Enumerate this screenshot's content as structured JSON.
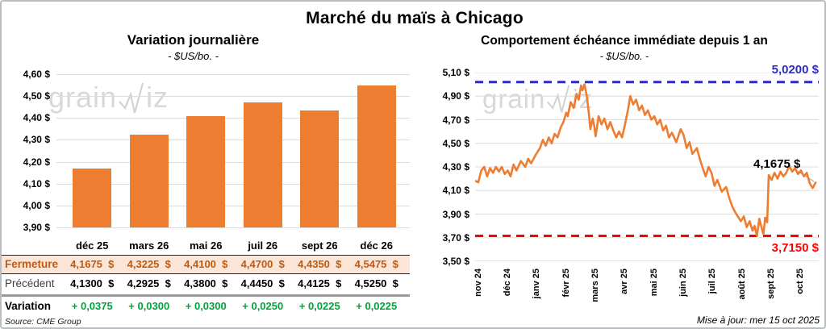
{
  "header": {
    "title": "Marché du maïs à Chicago"
  },
  "watermark": {
    "part1": "grain",
    "part2": "iz"
  },
  "chart_data": [
    {
      "type": "bar",
      "title": "Variation journalière",
      "subtitle": "- $US/bo. -",
      "categories": [
        "déc 25",
        "mars 26",
        "mai 26",
        "juil 26",
        "sept 26",
        "déc 26"
      ],
      "values": [
        4.1675,
        4.3225,
        4.41,
        4.47,
        4.435,
        4.5475
      ],
      "ylim": [
        3.9,
        4.6
      ],
      "ytick_labels": [
        "4,60 $",
        "4,50 $",
        "4,40 $",
        "4,30 $",
        "4,20 $",
        "4,10 $",
        "4,00 $",
        "3,90 $"
      ],
      "bar_color": "#ED7D31",
      "grid": true
    },
    {
      "type": "line",
      "title": "Comportement échéance immédiate depuis 1 an",
      "subtitle": "- $US/bo. -",
      "x_labels": [
        "nov 24",
        "déc 24",
        "janv 25",
        "févr 25",
        "mars 25",
        "avr 25",
        "mai 25",
        "juin 25",
        "juil 25",
        "août 25",
        "sept 25",
        "oct 25"
      ],
      "ytick_labels": [
        "5,10 $",
        "4,90 $",
        "4,70 $",
        "4,50 $",
        "4,30 $",
        "4,10 $",
        "3,90 $",
        "3,70 $",
        "3,50 $"
      ],
      "ylim": [
        3.5,
        5.1
      ],
      "line_color": "#ED7D31",
      "high_line": {
        "value": 5.02,
        "label": "5,0200 $",
        "color": "#2C2CC4"
      },
      "low_line": {
        "value": 3.715,
        "label": "3,7150 $",
        "color": "#FE0000"
      },
      "last_value": 4.1675,
      "last_label": "4,1675 $",
      "grid": true,
      "points": [
        [
          -0.1,
          4.18
        ],
        [
          0.0,
          4.17
        ],
        [
          0.1,
          4.27
        ],
        [
          0.2,
          4.3
        ],
        [
          0.3,
          4.22
        ],
        [
          0.4,
          4.29
        ],
        [
          0.5,
          4.25
        ],
        [
          0.6,
          4.3
        ],
        [
          0.7,
          4.26
        ],
        [
          0.8,
          4.3
        ],
        [
          0.9,
          4.24
        ],
        [
          1.0,
          4.27
        ],
        [
          1.1,
          4.22
        ],
        [
          1.2,
          4.32
        ],
        [
          1.3,
          4.27
        ],
        [
          1.45,
          4.35
        ],
        [
          1.6,
          4.3
        ],
        [
          1.7,
          4.37
        ],
        [
          1.8,
          4.33
        ],
        [
          1.95,
          4.4
        ],
        [
          2.1,
          4.46
        ],
        [
          2.2,
          4.53
        ],
        [
          2.3,
          4.48
        ],
        [
          2.4,
          4.55
        ],
        [
          2.5,
          4.5
        ],
        [
          2.6,
          4.58
        ],
        [
          2.7,
          4.55
        ],
        [
          2.8,
          4.63
        ],
        [
          2.9,
          4.68
        ],
        [
          3.0,
          4.76
        ],
        [
          3.05,
          4.73
        ],
        [
          3.15,
          4.85
        ],
        [
          3.25,
          4.8
        ],
        [
          3.35,
          4.92
        ],
        [
          3.42,
          4.87
        ],
        [
          3.5,
          4.99
        ],
        [
          3.55,
          4.95
        ],
        [
          3.62,
          5.0
        ],
        [
          3.7,
          4.9
        ],
        [
          3.78,
          4.73
        ],
        [
          3.82,
          4.62
        ],
        [
          3.9,
          4.71
        ],
        [
          3.95,
          4.65
        ],
        [
          4.0,
          4.56
        ],
        [
          4.1,
          4.73
        ],
        [
          4.2,
          4.66
        ],
        [
          4.3,
          4.71
        ],
        [
          4.4,
          4.62
        ],
        [
          4.5,
          4.68
        ],
        [
          4.6,
          4.61
        ],
        [
          4.7,
          4.55
        ],
        [
          4.8,
          4.6
        ],
        [
          4.9,
          4.55
        ],
        [
          5.0,
          4.66
        ],
        [
          5.1,
          4.78
        ],
        [
          5.18,
          4.9
        ],
        [
          5.28,
          4.83
        ],
        [
          5.38,
          4.87
        ],
        [
          5.48,
          4.78
        ],
        [
          5.58,
          4.82
        ],
        [
          5.68,
          4.74
        ],
        [
          5.78,
          4.78
        ],
        [
          5.9,
          4.7
        ],
        [
          6.0,
          4.73
        ],
        [
          6.1,
          4.66
        ],
        [
          6.2,
          4.7
        ],
        [
          6.3,
          4.61
        ],
        [
          6.4,
          4.65
        ],
        [
          6.5,
          4.55
        ],
        [
          6.6,
          4.59
        ],
        [
          6.75,
          4.51
        ],
        [
          6.9,
          4.62
        ],
        [
          7.0,
          4.57
        ],
        [
          7.1,
          4.46
        ],
        [
          7.2,
          4.51
        ],
        [
          7.3,
          4.41
        ],
        [
          7.45,
          4.46
        ],
        [
          7.55,
          4.37
        ],
        [
          7.65,
          4.29
        ],
        [
          7.75,
          4.22
        ],
        [
          7.85,
          4.3
        ],
        [
          7.95,
          4.25
        ],
        [
          8.05,
          4.14
        ],
        [
          8.15,
          4.19
        ],
        [
          8.3,
          4.09
        ],
        [
          8.45,
          4.13
        ],
        [
          8.55,
          4.04
        ],
        [
          8.65,
          3.97
        ],
        [
          8.75,
          3.92
        ],
        [
          8.85,
          3.88
        ],
        [
          8.95,
          3.84
        ],
        [
          9.05,
          3.88
        ],
        [
          9.15,
          3.79
        ],
        [
          9.25,
          3.84
        ],
        [
          9.35,
          3.76
        ],
        [
          9.42,
          3.8
        ],
        [
          9.5,
          3.715
        ],
        [
          9.58,
          3.86
        ],
        [
          9.65,
          3.79
        ],
        [
          9.72,
          3.73
        ],
        [
          9.78,
          3.87
        ],
        [
          9.85,
          3.83
        ],
        [
          9.9,
          4.23
        ],
        [
          10.0,
          4.19
        ],
        [
          10.1,
          4.25
        ],
        [
          10.2,
          4.2
        ],
        [
          10.3,
          4.26
        ],
        [
          10.4,
          4.22
        ],
        [
          10.5,
          4.25
        ],
        [
          10.6,
          4.31
        ],
        [
          10.7,
          4.26
        ],
        [
          10.8,
          4.29
        ],
        [
          10.9,
          4.24
        ],
        [
          11.0,
          4.27
        ],
        [
          11.1,
          4.22
        ],
        [
          11.2,
          4.25
        ],
        [
          11.3,
          4.16
        ],
        [
          11.4,
          4.12
        ],
        [
          11.5,
          4.1675
        ]
      ]
    }
  ],
  "table": {
    "rows": [
      {
        "label": "Fermeture",
        "values": [
          "4,1675  $",
          "4,3225  $",
          "4,4100  $",
          "4,4700  $",
          "4,4350  $",
          "4,5475  $"
        ]
      },
      {
        "label": "Précédent",
        "values": [
          "4,1300  $",
          "4,2925  $",
          "4,3800  $",
          "4,4450  $",
          "4,4125  $",
          "4,5250  $"
        ]
      },
      {
        "label": "Variation",
        "values": [
          "+ 0,0375",
          "+ 0,0300",
          "+ 0,0300",
          "+ 0,0250",
          "+ 0,0225",
          "+ 0,0225"
        ]
      }
    ]
  },
  "footer": {
    "source": "Source: CME Group",
    "updated": "Mise à jour: mer 15 oct 2025"
  },
  "colors": {
    "orange": "#ED7D31",
    "fermeture_bg": "#FBE5D6",
    "fermeture_text": "#C05A11",
    "variation_green": "#00A33A",
    "high_blue": "#2C2CC4",
    "low_red": "#FE0000",
    "gridline": "#DCDCDC"
  }
}
